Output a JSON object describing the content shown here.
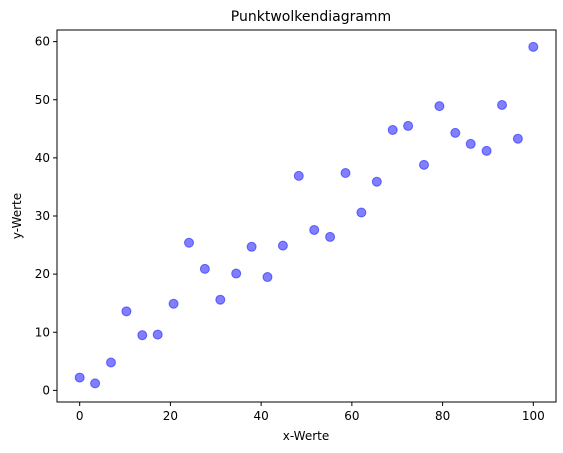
{
  "chart_data": {
    "type": "scatter",
    "title": "Punktwolkendiagramm",
    "xlabel": "x-Werte",
    "ylabel": "y-Werte",
    "xlim": [
      -5.0,
      105.0
    ],
    "ylim": [
      -2.0,
      62.0
    ],
    "xticks": [
      0,
      20,
      40,
      60,
      80,
      100
    ],
    "yticks": [
      0,
      10,
      20,
      30,
      40,
      50,
      60
    ],
    "grid": false,
    "marker_color": "#0000ff",
    "marker_alpha": 0.5,
    "points": [
      {
        "x": 0.0,
        "y": 2.2
      },
      {
        "x": 3.4,
        "y": 1.2
      },
      {
        "x": 6.9,
        "y": 4.8
      },
      {
        "x": 10.3,
        "y": 13.6
      },
      {
        "x": 13.8,
        "y": 9.5
      },
      {
        "x": 17.2,
        "y": 9.6
      },
      {
        "x": 20.7,
        "y": 14.9
      },
      {
        "x": 24.1,
        "y": 25.4
      },
      {
        "x": 27.6,
        "y": 20.9
      },
      {
        "x": 31.0,
        "y": 15.6
      },
      {
        "x": 34.5,
        "y": 20.1
      },
      {
        "x": 37.9,
        "y": 24.7
      },
      {
        "x": 41.4,
        "y": 19.5
      },
      {
        "x": 44.8,
        "y": 24.9
      },
      {
        "x": 48.3,
        "y": 36.9
      },
      {
        "x": 51.7,
        "y": 27.6
      },
      {
        "x": 55.2,
        "y": 26.4
      },
      {
        "x": 58.6,
        "y": 37.4
      },
      {
        "x": 62.1,
        "y": 30.6
      },
      {
        "x": 65.5,
        "y": 35.9
      },
      {
        "x": 69.0,
        "y": 44.8
      },
      {
        "x": 72.4,
        "y": 45.5
      },
      {
        "x": 75.9,
        "y": 38.8
      },
      {
        "x": 79.3,
        "y": 48.9
      },
      {
        "x": 82.8,
        "y": 44.3
      },
      {
        "x": 86.2,
        "y": 42.4
      },
      {
        "x": 89.7,
        "y": 41.2
      },
      {
        "x": 93.1,
        "y": 49.1
      },
      {
        "x": 96.6,
        "y": 43.3
      },
      {
        "x": 100.0,
        "y": 59.1
      }
    ]
  }
}
